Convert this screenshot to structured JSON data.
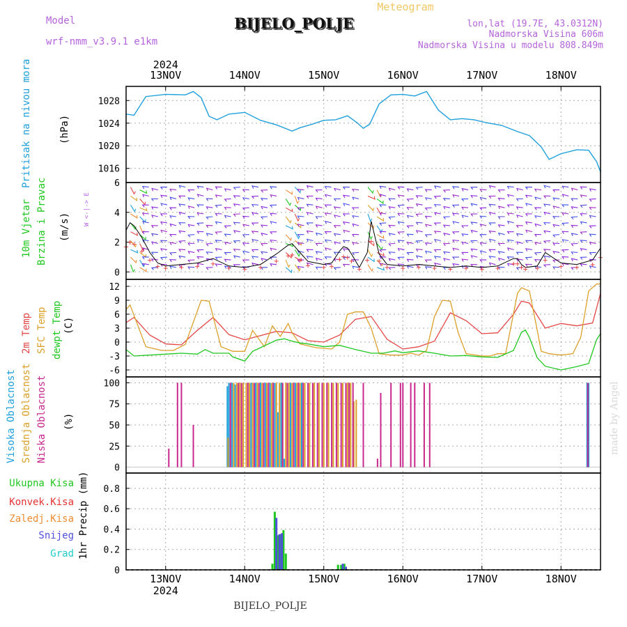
{
  "header": {
    "model_label": "Model",
    "model_name": "wrf-nmm_v3.9.1 e1km",
    "title": "BIJELO_POLJE",
    "meteogram": "Meteogram",
    "lonlat": "lon,lat (19.7E, 43.0312N)",
    "elevation": "Nadmorska Visina 606m",
    "model_elevation": "Nadmorska Visina u modelu 808.849m",
    "watermark": "made by Angel",
    "footer": "BIJELO_POLJE"
  },
  "colors": {
    "pressure": "#1ea0dc",
    "t2m": "#e64646",
    "sfc": "#dca028",
    "dew": "#1ec81e",
    "high_cloud": "#1ea0dc",
    "mid_cloud": "#dca028",
    "low_cloud": "#c8288c",
    "total_precip": "#1ec81e",
    "conv_precip": "#e63232",
    "frz_precip": "#f08c32",
    "snow": "#5050dc",
    "graupel": "#1ecdc8"
  },
  "chart_data": [
    {
      "type": "line",
      "panel": "pressure",
      "ylabel": [
        "Pritisak na nivou mora",
        "(hPa)"
      ],
      "ylim": [
        1013.5,
        1030.5
      ],
      "yticks": [
        1016,
        1020,
        1024,
        1028
      ],
      "x_days": [
        12.5,
        12.6,
        12.75,
        13.0,
        13.25,
        13.35,
        13.45,
        13.55,
        13.65,
        13.8,
        14.0,
        14.2,
        14.4,
        14.6,
        14.7,
        14.85,
        15.0,
        15.15,
        15.3,
        15.42,
        15.5,
        15.58,
        15.7,
        15.85,
        16.0,
        16.15,
        16.3,
        16.45,
        16.6,
        16.75,
        16.9,
        17.05,
        17.25,
        17.45,
        17.6,
        17.75,
        17.85,
        18.0,
        18.2,
        18.35,
        18.45,
        18.5
      ],
      "values": [
        1025.6,
        1025.4,
        1028.7,
        1029.1,
        1029.0,
        1029.6,
        1028.5,
        1025.2,
        1024.6,
        1025.6,
        1025.9,
        1024.5,
        1023.7,
        1022.6,
        1023.2,
        1023.8,
        1024.5,
        1024.6,
        1025.3,
        1024.1,
        1023.1,
        1023.8,
        1027.4,
        1029.0,
        1029.1,
        1028.8,
        1029.6,
        1026.3,
        1024.6,
        1024.8,
        1024.6,
        1024.1,
        1023.6,
        1022.5,
        1021.8,
        1019.8,
        1017.6,
        1018.6,
        1019.3,
        1019.2,
        1017.2,
        1015.4
      ],
      "series_name": ""
    },
    {
      "type": "line",
      "panel": "wind",
      "ylabel": [
        "10m Vjetar",
        "Brzina i Pravac",
        "(m/s)"
      ],
      "compass": "W <-|-> E",
      "ylim": [
        -0.5,
        6.0
      ],
      "yticks": [
        0,
        2,
        4,
        6
      ],
      "x_days": [
        12.5,
        12.55,
        12.6,
        12.7,
        12.8,
        12.9,
        13.0,
        13.2,
        13.4,
        13.6,
        13.8,
        14.0,
        14.2,
        14.4,
        14.55,
        14.6,
        14.7,
        14.8,
        15.0,
        15.1,
        15.2,
        15.25,
        15.3,
        15.35,
        15.45,
        15.55,
        15.6,
        15.7,
        15.8,
        16.0,
        16.2,
        16.4,
        16.6,
        16.8,
        17.0,
        17.2,
        17.4,
        17.45,
        17.5,
        17.55,
        17.7,
        17.8,
        18.0,
        18.2,
        18.4,
        18.5
      ],
      "speed": [
        2.8,
        3.3,
        3.1,
        2.3,
        1.3,
        0.6,
        0.4,
        0.5,
        0.6,
        0.9,
        0.4,
        0.3,
        0.5,
        1.2,
        1.8,
        1.9,
        1.3,
        0.7,
        0.5,
        0.6,
        1.4,
        1.7,
        1.6,
        1.2,
        0.3,
        1.3,
        3.4,
        1.2,
        0.5,
        0.4,
        0.5,
        0.4,
        0.3,
        0.4,
        0.3,
        0.4,
        0.9,
        0.9,
        0.5,
        0.3,
        0.4,
        1.3,
        0.6,
        0.5,
        0.8,
        1.6
      ],
      "barb_rows": [
        0.4,
        0.9,
        1.4,
        2.0,
        2.6,
        3.2,
        3.8,
        4.4,
        5.0,
        5.6
      ]
    },
    {
      "type": "line",
      "panel": "temperature",
      "ylabel": [
        "2m Temp",
        "SFC Temp",
        "dewpt Temp",
        "(C)"
      ],
      "ylim": [
        -7.5,
        13.5
      ],
      "yticks": [
        -6,
        -3,
        0,
        3,
        6,
        9,
        12
      ],
      "series": [
        {
          "name": "2m Temp",
          "x_days": [
            12.5,
            12.6,
            12.8,
            13.0,
            13.2,
            13.4,
            13.6,
            13.8,
            14.0,
            14.2,
            14.4,
            14.6,
            14.8,
            15.0,
            15.2,
            15.4,
            15.6,
            15.8,
            16.0,
            16.2,
            16.4,
            16.6,
            16.8,
            17.0,
            17.2,
            17.4,
            17.5,
            17.6,
            17.8,
            18.0,
            18.2,
            18.4,
            18.5
          ],
          "values": [
            4.2,
            5.3,
            1.5,
            -0.4,
            -0.6,
            2.5,
            5.3,
            1.6,
            0.5,
            1.4,
            2.3,
            2.0,
            0.3,
            0.0,
            1.5,
            4.9,
            5.5,
            0.6,
            -1.5,
            -1.0,
            0.2,
            6.3,
            4.6,
            1.8,
            2.0,
            6.0,
            8.8,
            8.4,
            3.0,
            4.0,
            3.5,
            4.1,
            10.5
          ]
        },
        {
          "name": "SFC Temp",
          "x_days": [
            12.5,
            12.55,
            12.75,
            12.95,
            13.1,
            13.25,
            13.45,
            13.55,
            13.7,
            13.85,
            14.0,
            14.1,
            14.25,
            14.35,
            14.45,
            14.55,
            14.6,
            14.7,
            14.9,
            15.1,
            15.2,
            15.3,
            15.4,
            15.5,
            15.6,
            15.7,
            15.85,
            16.0,
            16.1,
            16.2,
            16.3,
            16.4,
            16.5,
            16.6,
            16.7,
            16.8,
            17.0,
            17.1,
            17.2,
            17.3,
            17.45,
            17.5,
            17.6,
            17.7,
            17.75,
            17.85,
            18.0,
            18.15,
            18.25,
            18.35,
            18.45,
            18.5
          ],
          "values": [
            7.0,
            8.0,
            -1.0,
            -1.8,
            -1.8,
            -0.5,
            9.0,
            8.8,
            -1.0,
            -2.0,
            -2.0,
            2.5,
            -1.0,
            3.5,
            1.2,
            4.0,
            2.0,
            -0.4,
            -1.2,
            -1.5,
            0.0,
            6.0,
            6.5,
            6.5,
            3.0,
            -2.5,
            -2.8,
            -2.8,
            -2.4,
            -2.8,
            -1.8,
            5.5,
            9.0,
            8.8,
            2.0,
            -2.5,
            -3.0,
            -3.0,
            -2.5,
            -2.5,
            10.5,
            11.7,
            11.0,
            2.5,
            -2.0,
            -2.5,
            -2.8,
            -2.5,
            1.0,
            11.0,
            12.5,
            12.5
          ]
        },
        {
          "name": "dewpt Temp",
          "x_days": [
            12.5,
            12.6,
            12.8,
            13.0,
            13.2,
            13.4,
            13.5,
            13.6,
            13.8,
            13.85,
            14.0,
            14.1,
            14.2,
            14.4,
            14.5,
            14.6,
            14.7,
            14.8,
            15.0,
            15.2,
            15.4,
            15.5,
            15.6,
            15.75,
            15.9,
            16.0,
            16.2,
            16.4,
            16.6,
            16.8,
            17.0,
            17.2,
            17.4,
            17.5,
            17.55,
            17.6,
            17.7,
            17.8,
            18.0,
            18.2,
            18.35,
            18.45,
            18.5
          ],
          "values": [
            -1.6,
            -3.0,
            -2.8,
            -2.6,
            -2.4,
            -2.6,
            -1.6,
            -2.4,
            -2.4,
            -3.2,
            -4.1,
            -2.0,
            -1.2,
            0.4,
            0.7,
            0.2,
            -0.2,
            -0.4,
            -1.0,
            -0.7,
            -1.6,
            -2.0,
            -2.4,
            -2.4,
            -1.9,
            -2.3,
            -1.9,
            -2.4,
            -3.0,
            -2.9,
            -3.2,
            -3.3,
            -1.8,
            2.1,
            2.6,
            1.0,
            -3.4,
            -5.2,
            -6.0,
            -5.3,
            -4.6,
            0.5,
            1.8
          ]
        }
      ]
    },
    {
      "type": "bar",
      "panel": "cloud",
      "ylabel": [
        "Visoka Oblacnost",
        "Srednja Oblacnost",
        "Niska Oblacnost",
        "(%)"
      ],
      "ylim": [
        -7,
        107
      ],
      "yticks": [
        0,
        25,
        50,
        75,
        100
      ],
      "series": [
        {
          "name": "Visoka Oblacnost",
          "x_days": [
            13.78,
            13.8,
            13.84,
            13.88,
            14.08,
            14.14,
            14.2,
            14.26,
            14.32,
            14.38,
            14.42,
            14.46,
            14.5,
            14.58,
            14.64,
            14.72,
            18.33,
            18.35
          ],
          "values": [
            96,
            100,
            100,
            98,
            100,
            100,
            100,
            100,
            100,
            100,
            65,
            100,
            10,
            100,
            100,
            100,
            100,
            100
          ]
        },
        {
          "name": "Srednja Oblacnost",
          "x_days": [
            13.79,
            13.86,
            13.9,
            13.94,
            13.98,
            14.02,
            14.06,
            14.1,
            14.16,
            14.22,
            14.28,
            14.34,
            14.4,
            14.44,
            14.48,
            14.52,
            14.56,
            14.6,
            14.66,
            14.7,
            14.76,
            14.82,
            14.88,
            14.94,
            15.0,
            15.06,
            15.12,
            15.18,
            15.24,
            15.3,
            15.34,
            15.38,
            15.41
          ],
          "values": [
            35,
            100,
            100,
            100,
            100,
            100,
            100,
            100,
            100,
            100,
            100,
            100,
            100,
            100,
            100,
            100,
            100,
            100,
            100,
            100,
            100,
            100,
            100,
            100,
            100,
            100,
            100,
            100,
            100,
            100,
            100,
            78,
            80
          ]
        },
        {
          "name": "Niska Oblacnost",
          "x_days": [
            13.04,
            13.15,
            13.2,
            13.35,
            13.82,
            13.92,
            13.96,
            14.04,
            14.12,
            14.18,
            14.24,
            14.3,
            14.36,
            14.48,
            14.54,
            14.62,
            14.68,
            14.74,
            14.8,
            14.86,
            14.92,
            14.98,
            15.04,
            15.1,
            15.16,
            15.22,
            15.28,
            15.32,
            15.37,
            15.5,
            15.68,
            15.72,
            15.85,
            15.97,
            16.0,
            16.1,
            16.15,
            16.27,
            16.34,
            18.34
          ],
          "values": [
            22,
            100,
            100,
            50,
            100,
            100,
            100,
            100,
            100,
            100,
            100,
            100,
            100,
            100,
            100,
            100,
            100,
            100,
            100,
            100,
            100,
            100,
            100,
            100,
            100,
            100,
            100,
            100,
            100,
            100,
            10,
            88,
            100,
            100,
            100,
            100,
            100,
            100,
            100,
            100
          ]
        }
      ]
    },
    {
      "type": "bar",
      "panel": "precip",
      "ylabel": [
        "1hr Precip (mm)"
      ],
      "legend": [
        "Ukupna Kisa",
        "Konvek.Kisa",
        "Zaledj.Kisa",
        "Snijeg",
        "Grad"
      ],
      "ylim": [
        0,
        0.95
      ],
      "yticks": [
        0,
        0.2,
        0.4,
        0.6,
        0.8
      ],
      "series": [
        {
          "name": "Ukupna Kisa",
          "x_days": [
            14.35,
            14.38,
            14.42,
            14.46,
            14.49,
            14.52,
            15.18,
            15.22,
            15.26
          ],
          "values": [
            0.06,
            0.57,
            0.34,
            0.35,
            0.39,
            0.16,
            0.05,
            0.05,
            0.06
          ]
        },
        {
          "name": "Snijeg",
          "x_days": [
            14.4,
            14.44,
            14.47,
            15.24,
            15.28
          ],
          "values": [
            0.51,
            0.35,
            0.36,
            0.06,
            0.03
          ]
        }
      ]
    }
  ],
  "time_axis": {
    "year": "2024",
    "days": [
      {
        "value": 13,
        "label": "13NOV"
      },
      {
        "value": 14,
        "label": "14NOV"
      },
      {
        "value": 15,
        "label": "15NOV"
      },
      {
        "value": 16,
        "label": "16NOV"
      },
      {
        "value": 17,
        "label": "17NOV"
      },
      {
        "value": 18,
        "label": "18NOV"
      }
    ],
    "xlim": [
      12.5,
      18.5
    ]
  }
}
